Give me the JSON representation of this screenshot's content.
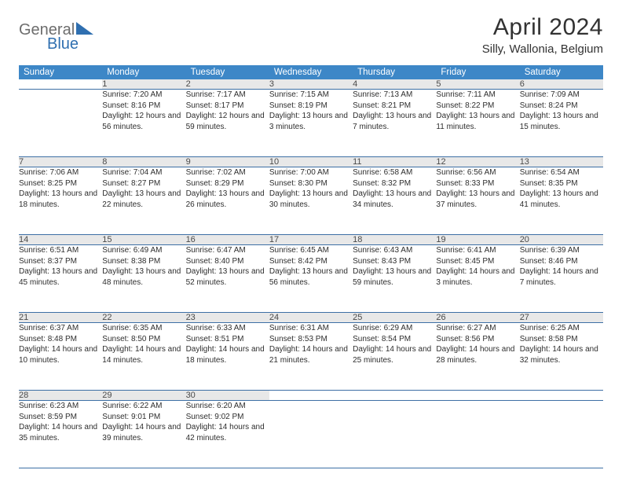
{
  "brand": {
    "word1": "General",
    "word2": "Blue"
  },
  "title": "April 2024",
  "location": "Silly, Wallonia, Belgium",
  "colors": {
    "header_bg": "#3d87c7",
    "header_text": "#ffffff",
    "daynum_bg": "#e8e8e8",
    "row_border": "#3d6fa5",
    "text": "#2e2e2e",
    "logo_gray": "#6d6d6d",
    "logo_blue": "#2f6fb0"
  },
  "typography": {
    "title_fontsize": 30,
    "location_fontsize": 15,
    "dayheader_fontsize": 11.5,
    "daynum_fontsize": 11,
    "cell_fontsize": 10
  },
  "day_headers": [
    "Sunday",
    "Monday",
    "Tuesday",
    "Wednesday",
    "Thursday",
    "Friday",
    "Saturday"
  ],
  "labels": {
    "sunrise": "Sunrise: ",
    "sunset": "Sunset: ",
    "daylight": "Daylight: "
  },
  "weeks": [
    [
      null,
      {
        "n": "1",
        "sunrise": "7:20 AM",
        "sunset": "8:16 PM",
        "daylight": "12 hours and 56 minutes."
      },
      {
        "n": "2",
        "sunrise": "7:17 AM",
        "sunset": "8:17 PM",
        "daylight": "12 hours and 59 minutes."
      },
      {
        "n": "3",
        "sunrise": "7:15 AM",
        "sunset": "8:19 PM",
        "daylight": "13 hours and 3 minutes."
      },
      {
        "n": "4",
        "sunrise": "7:13 AM",
        "sunset": "8:21 PM",
        "daylight": "13 hours and 7 minutes."
      },
      {
        "n": "5",
        "sunrise": "7:11 AM",
        "sunset": "8:22 PM",
        "daylight": "13 hours and 11 minutes."
      },
      {
        "n": "6",
        "sunrise": "7:09 AM",
        "sunset": "8:24 PM",
        "daylight": "13 hours and 15 minutes."
      }
    ],
    [
      {
        "n": "7",
        "sunrise": "7:06 AM",
        "sunset": "8:25 PM",
        "daylight": "13 hours and 18 minutes."
      },
      {
        "n": "8",
        "sunrise": "7:04 AM",
        "sunset": "8:27 PM",
        "daylight": "13 hours and 22 minutes."
      },
      {
        "n": "9",
        "sunrise": "7:02 AM",
        "sunset": "8:29 PM",
        "daylight": "13 hours and 26 minutes."
      },
      {
        "n": "10",
        "sunrise": "7:00 AM",
        "sunset": "8:30 PM",
        "daylight": "13 hours and 30 minutes."
      },
      {
        "n": "11",
        "sunrise": "6:58 AM",
        "sunset": "8:32 PM",
        "daylight": "13 hours and 34 minutes."
      },
      {
        "n": "12",
        "sunrise": "6:56 AM",
        "sunset": "8:33 PM",
        "daylight": "13 hours and 37 minutes."
      },
      {
        "n": "13",
        "sunrise": "6:54 AM",
        "sunset": "8:35 PM",
        "daylight": "13 hours and 41 minutes."
      }
    ],
    [
      {
        "n": "14",
        "sunrise": "6:51 AM",
        "sunset": "8:37 PM",
        "daylight": "13 hours and 45 minutes."
      },
      {
        "n": "15",
        "sunrise": "6:49 AM",
        "sunset": "8:38 PM",
        "daylight": "13 hours and 48 minutes."
      },
      {
        "n": "16",
        "sunrise": "6:47 AM",
        "sunset": "8:40 PM",
        "daylight": "13 hours and 52 minutes."
      },
      {
        "n": "17",
        "sunrise": "6:45 AM",
        "sunset": "8:42 PM",
        "daylight": "13 hours and 56 minutes."
      },
      {
        "n": "18",
        "sunrise": "6:43 AM",
        "sunset": "8:43 PM",
        "daylight": "13 hours and 59 minutes."
      },
      {
        "n": "19",
        "sunrise": "6:41 AM",
        "sunset": "8:45 PM",
        "daylight": "14 hours and 3 minutes."
      },
      {
        "n": "20",
        "sunrise": "6:39 AM",
        "sunset": "8:46 PM",
        "daylight": "14 hours and 7 minutes."
      }
    ],
    [
      {
        "n": "21",
        "sunrise": "6:37 AM",
        "sunset": "8:48 PM",
        "daylight": "14 hours and 10 minutes."
      },
      {
        "n": "22",
        "sunrise": "6:35 AM",
        "sunset": "8:50 PM",
        "daylight": "14 hours and 14 minutes."
      },
      {
        "n": "23",
        "sunrise": "6:33 AM",
        "sunset": "8:51 PM",
        "daylight": "14 hours and 18 minutes."
      },
      {
        "n": "24",
        "sunrise": "6:31 AM",
        "sunset": "8:53 PM",
        "daylight": "14 hours and 21 minutes."
      },
      {
        "n": "25",
        "sunrise": "6:29 AM",
        "sunset": "8:54 PM",
        "daylight": "14 hours and 25 minutes."
      },
      {
        "n": "26",
        "sunrise": "6:27 AM",
        "sunset": "8:56 PM",
        "daylight": "14 hours and 28 minutes."
      },
      {
        "n": "27",
        "sunrise": "6:25 AM",
        "sunset": "8:58 PM",
        "daylight": "14 hours and 32 minutes."
      }
    ],
    [
      {
        "n": "28",
        "sunrise": "6:23 AM",
        "sunset": "8:59 PM",
        "daylight": "14 hours and 35 minutes."
      },
      {
        "n": "29",
        "sunrise": "6:22 AM",
        "sunset": "9:01 PM",
        "daylight": "14 hours and 39 minutes."
      },
      {
        "n": "30",
        "sunrise": "6:20 AM",
        "sunset": "9:02 PM",
        "daylight": "14 hours and 42 minutes."
      },
      null,
      null,
      null,
      null
    ]
  ]
}
